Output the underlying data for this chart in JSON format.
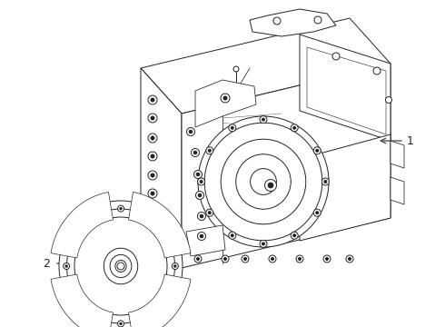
{
  "background_color": "#ffffff",
  "line_color": "#222222",
  "fill_color": "#ffffff",
  "label_1": "1",
  "label_2": "2",
  "arrow_color": "#444444",
  "font_size": 9,
  "line_width": 0.7
}
